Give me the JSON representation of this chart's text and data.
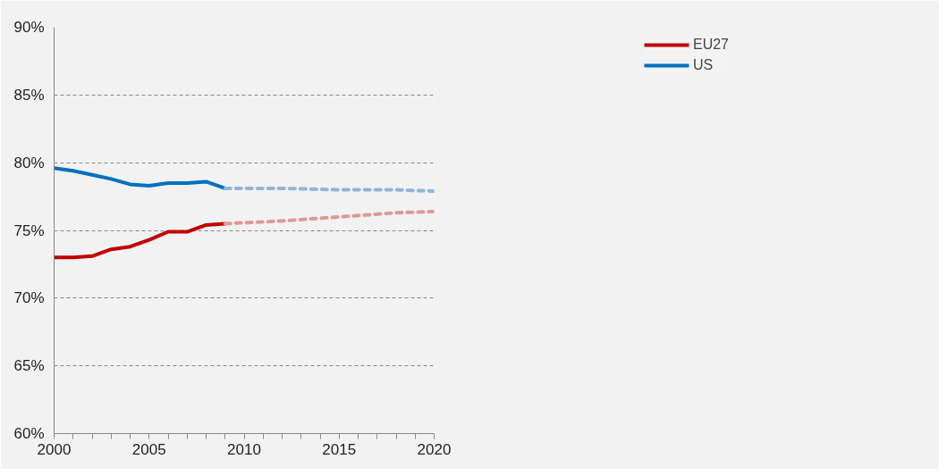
{
  "chart_data": {
    "type": "line",
    "x": [
      2000,
      2001,
      2002,
      2003,
      2004,
      2005,
      2006,
      2007,
      2008,
      2009
    ],
    "series": [
      {
        "name": "EU27",
        "color": "#c00000",
        "values": [
          73.0,
          73.0,
          73.1,
          73.6,
          73.8,
          74.3,
          74.9,
          74.9,
          75.4,
          75.5
        ]
      },
      {
        "color": "#e09898",
        "line_style": "dashed",
        "x": [
          2009,
          2012,
          2015,
          2018,
          2020
        ],
        "values": [
          75.5,
          75.7,
          76.0,
          76.3,
          76.4
        ]
      },
      {
        "name": "US",
        "color": "#0070c0",
        "values": [
          79.6,
          79.4,
          79.1,
          78.8,
          78.4,
          78.3,
          78.5,
          78.5,
          78.6,
          78.1
        ]
      },
      {
        "color": "#95b3d7",
        "line_style": "dashed",
        "x": [
          2009,
          2012,
          2015,
          2018,
          2020
        ],
        "values": [
          78.1,
          78.1,
          78.0,
          78.0,
          77.9
        ]
      }
    ],
    "xlim": [
      2000,
      2020
    ],
    "xticks": [
      2000,
      {
        "value": 2001,
        "label": null
      },
      {
        "value": 2002,
        "label": null
      },
      {
        "value": 2003,
        "label": null
      },
      {
        "value": 2004,
        "label": null
      },
      2005,
      {
        "value": 2006,
        "label": null
      },
      {
        "value": 2007,
        "label": null
      },
      {
        "value": 2008,
        "label": null
      },
      {
        "value": 2009,
        "label": null
      },
      2010,
      {
        "value": 2011,
        "label": null
      },
      {
        "value": 2012,
        "label": null
      },
      {
        "value": 2013,
        "label": null
      },
      {
        "value": 2014,
        "label": null
      },
      2015,
      {
        "value": 2016,
        "label": null
      },
      {
        "value": 2017,
        "label": null
      },
      {
        "value": 2018,
        "label": null
      },
      {
        "value": 2019,
        "label": null
      },
      2020
    ],
    "ylim": [
      60,
      90
    ],
    "yticks": [
      {
        "value": 60,
        "label": "60%"
      },
      {
        "value": 65,
        "label": "65%"
      },
      {
        "value": 70,
        "label": "70%"
      },
      {
        "value": 75,
        "label": "75%"
      },
      {
        "value": 80,
        "label": "80%"
      },
      {
        "value": 85,
        "label": "85%"
      },
      {
        "value": 90,
        "label": "90%"
      }
    ],
    "grid": "y",
    "legend": "top right",
    "marker": "none",
    "line_style": "solid"
  }
}
